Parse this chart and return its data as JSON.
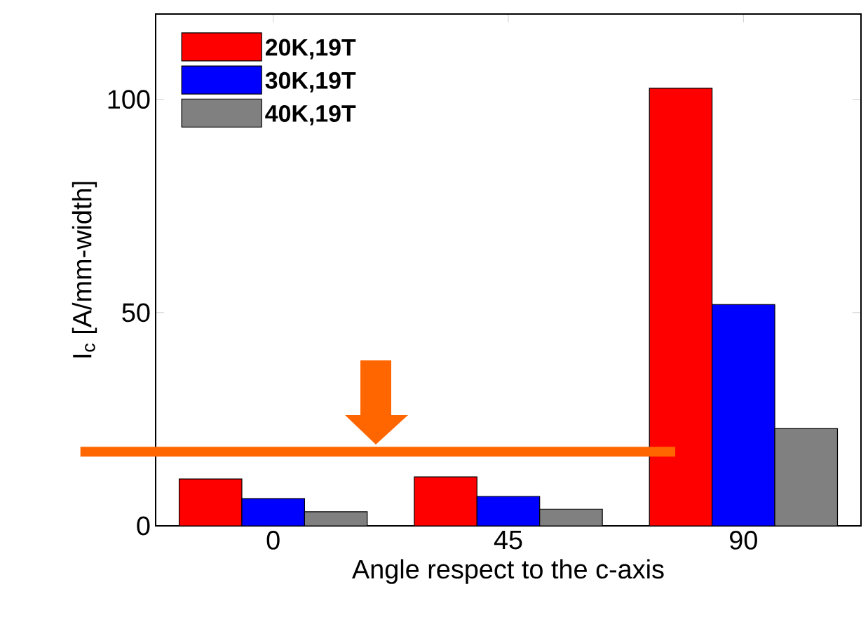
{
  "chart_data": {
    "type": "bar",
    "xlabel": "Angle respect to the c-axis",
    "ylabel": "I$_{c}$ [A/mm-width]",
    "categories": [
      "0",
      "45",
      "90"
    ],
    "series": [
      {
        "name": "20K,19T",
        "color": "#ff0000",
        "values": [
          11.0,
          11.5,
          102.6
        ]
      },
      {
        "name": "30K,19T",
        "color": "#0000ff",
        "values": [
          6.4,
          6.9,
          51.9
        ]
      },
      {
        "name": "40K,19T",
        "color": "#808080",
        "values": [
          3.3,
          3.9,
          22.8
        ]
      }
    ],
    "ylim": [
      0,
      120
    ],
    "yticks": [
      0,
      50,
      100
    ],
    "legend": "top left",
    "grid": false,
    "ref_lines": [
      {
        "axis": "y",
        "value": 17.4,
        "color": "#ff6600"
      }
    ]
  }
}
